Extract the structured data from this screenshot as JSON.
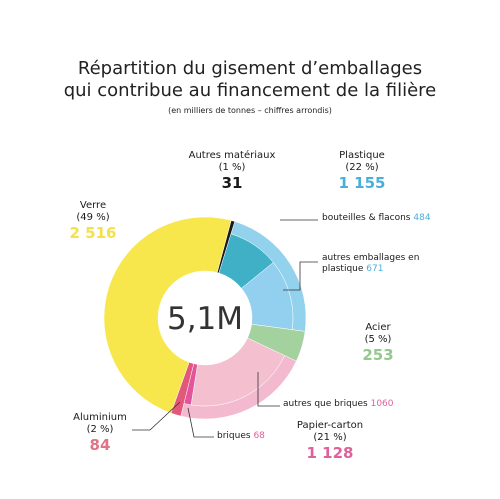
{
  "chart_data": {
    "type": "donut",
    "title": [
      "Répartition du gisement d’emballages",
      "qui contribue au financement de la filière"
    ],
    "subtitle": "(en milliers de tonnes – chiffres arrondis)",
    "center_label": "5,1M",
    "slices": [
      {
        "name": "Autres matériaux",
        "percent": 1,
        "percent_label": "(1 %)",
        "value": 31,
        "value_label": "31",
        "color": "#1a1a1a",
        "label_color": "#1a1a1a"
      },
      {
        "name": "Plastique",
        "percent": 22,
        "percent_label": "(22 %)",
        "value": 1155,
        "value_label": "1 155",
        "color": "#6ec3e8",
        "label_color": "#4aaedc",
        "parts": [
          {
            "name": "bouteilles & flacons",
            "value": 484,
            "color": "#3fb0c6"
          },
          {
            "name": "autres emballages en plastique",
            "value": 671,
            "color": "#93d0ef"
          }
        ]
      },
      {
        "name": "Acier",
        "percent": 5,
        "percent_label": "(5 %)",
        "value": 253,
        "value_label": "253",
        "color": "#a3d29e",
        "label_color": "#93c98d"
      },
      {
        "name": "Papier-carton",
        "percent": 21,
        "percent_label": "(21 %)",
        "value": 1128,
        "value_label": "1 128",
        "color": "#efa2bf",
        "label_color": "#e0609a",
        "parts": [
          {
            "name": "autres que briques",
            "value": 1060,
            "color": "#f4c0cf"
          },
          {
            "name": "briques",
            "value": 68,
            "color": "#e2559a"
          }
        ]
      },
      {
        "name": "Aluminium",
        "percent": 2,
        "percent_label": "(2 %)",
        "value": 84,
        "value_label": "84",
        "color": "#e2587a",
        "label_color": "#e07485"
      },
      {
        "name": "Verre",
        "percent": 49,
        "percent_label": "(49 %)",
        "value": 2516,
        "value_label": "2 516",
        "color": "#f7e64c",
        "label_color": "#f4e04a"
      }
    ]
  }
}
